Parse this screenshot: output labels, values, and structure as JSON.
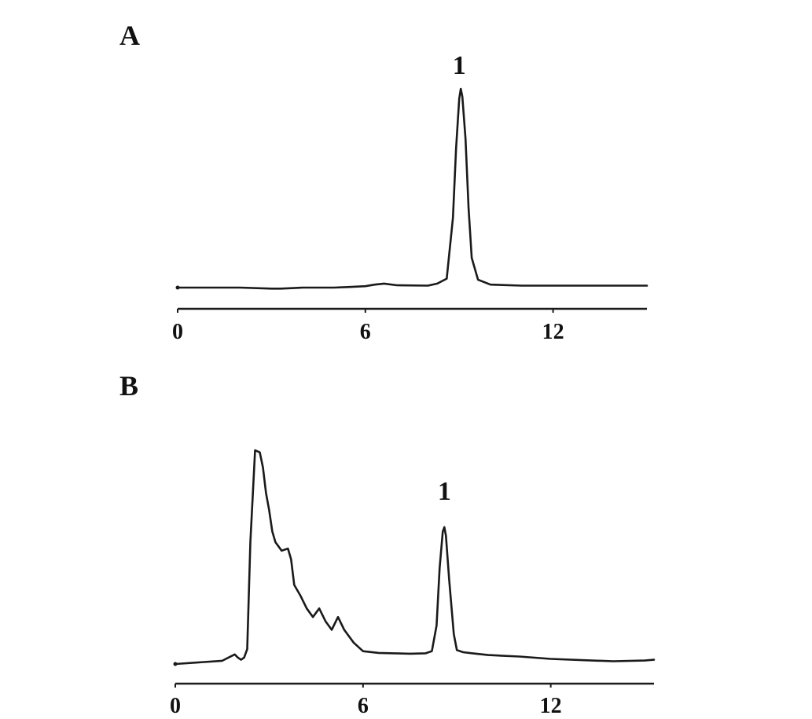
{
  "chart_data": [
    {
      "type": "line",
      "panel_label": "A",
      "x_ticks": [
        0,
        6,
        12
      ],
      "xlim": [
        0,
        15
      ],
      "ylim": [
        0,
        100
      ],
      "peak_label": {
        "text": "1",
        "x": 9.0
      },
      "series": [
        {
          "x": [
            0,
            2,
            3,
            3.3,
            4,
            5,
            5.5,
            6.0,
            6.3,
            6.6,
            7.0,
            8.0,
            8.3,
            8.6,
            8.8,
            8.9,
            9.0,
            9.05,
            9.1,
            9.2,
            9.3,
            9.4,
            9.6,
            10.0,
            11,
            12,
            13,
            15
          ],
          "y": [
            0,
            0,
            -0.5,
            -0.5,
            0,
            0,
            0.3,
            0.7,
            1.5,
            2.0,
            1.2,
            1.0,
            2.0,
            4.5,
            35,
            70,
            95,
            100,
            96,
            75,
            40,
            15,
            4,
            1.5,
            1.0,
            1.0,
            1.0,
            1.0
          ]
        }
      ]
    },
    {
      "type": "line",
      "panel_label": "B",
      "x_ticks": [
        0,
        6,
        12
      ],
      "xlim": [
        0,
        15.3
      ],
      "ylim": [
        0,
        100
      ],
      "peak_label": {
        "text": "1",
        "x": 8.6
      },
      "series": [
        {
          "x": [
            0,
            1.5,
            1.9,
            2.0,
            2.1,
            2.2,
            2.3,
            2.4,
            2.55,
            2.7,
            2.8,
            2.9,
            3.0,
            3.1,
            3.2,
            3.4,
            3.6,
            3.7,
            3.8,
            4.0,
            4.2,
            4.4,
            4.6,
            4.8,
            5.0,
            5.2,
            5.4,
            5.7,
            6.0,
            6.5,
            7.0,
            7.5,
            8.0,
            8.2,
            8.35,
            8.45,
            8.55,
            8.6,
            8.65,
            8.75,
            8.9,
            9.0,
            9.2,
            9.5,
            10,
            11,
            12,
            13,
            14,
            15,
            15.3
          ],
          "y": [
            0,
            1.5,
            4.5,
            3.0,
            2.0,
            3.0,
            7.0,
            57,
            100,
            99,
            92,
            80,
            72,
            62,
            57,
            53,
            54,
            49,
            37,
            32,
            26,
            22,
            26,
            20,
            16,
            22,
            16,
            10,
            6.0,
            5.2,
            5.0,
            4.8,
            5.0,
            6.0,
            18,
            45,
            62,
            64,
            60,
            40,
            14,
            6.5,
            5.5,
            5.0,
            4.2,
            3.5,
            2.4,
            1.8,
            1.3,
            1.6,
            2.0
          ]
        }
      ]
    }
  ]
}
